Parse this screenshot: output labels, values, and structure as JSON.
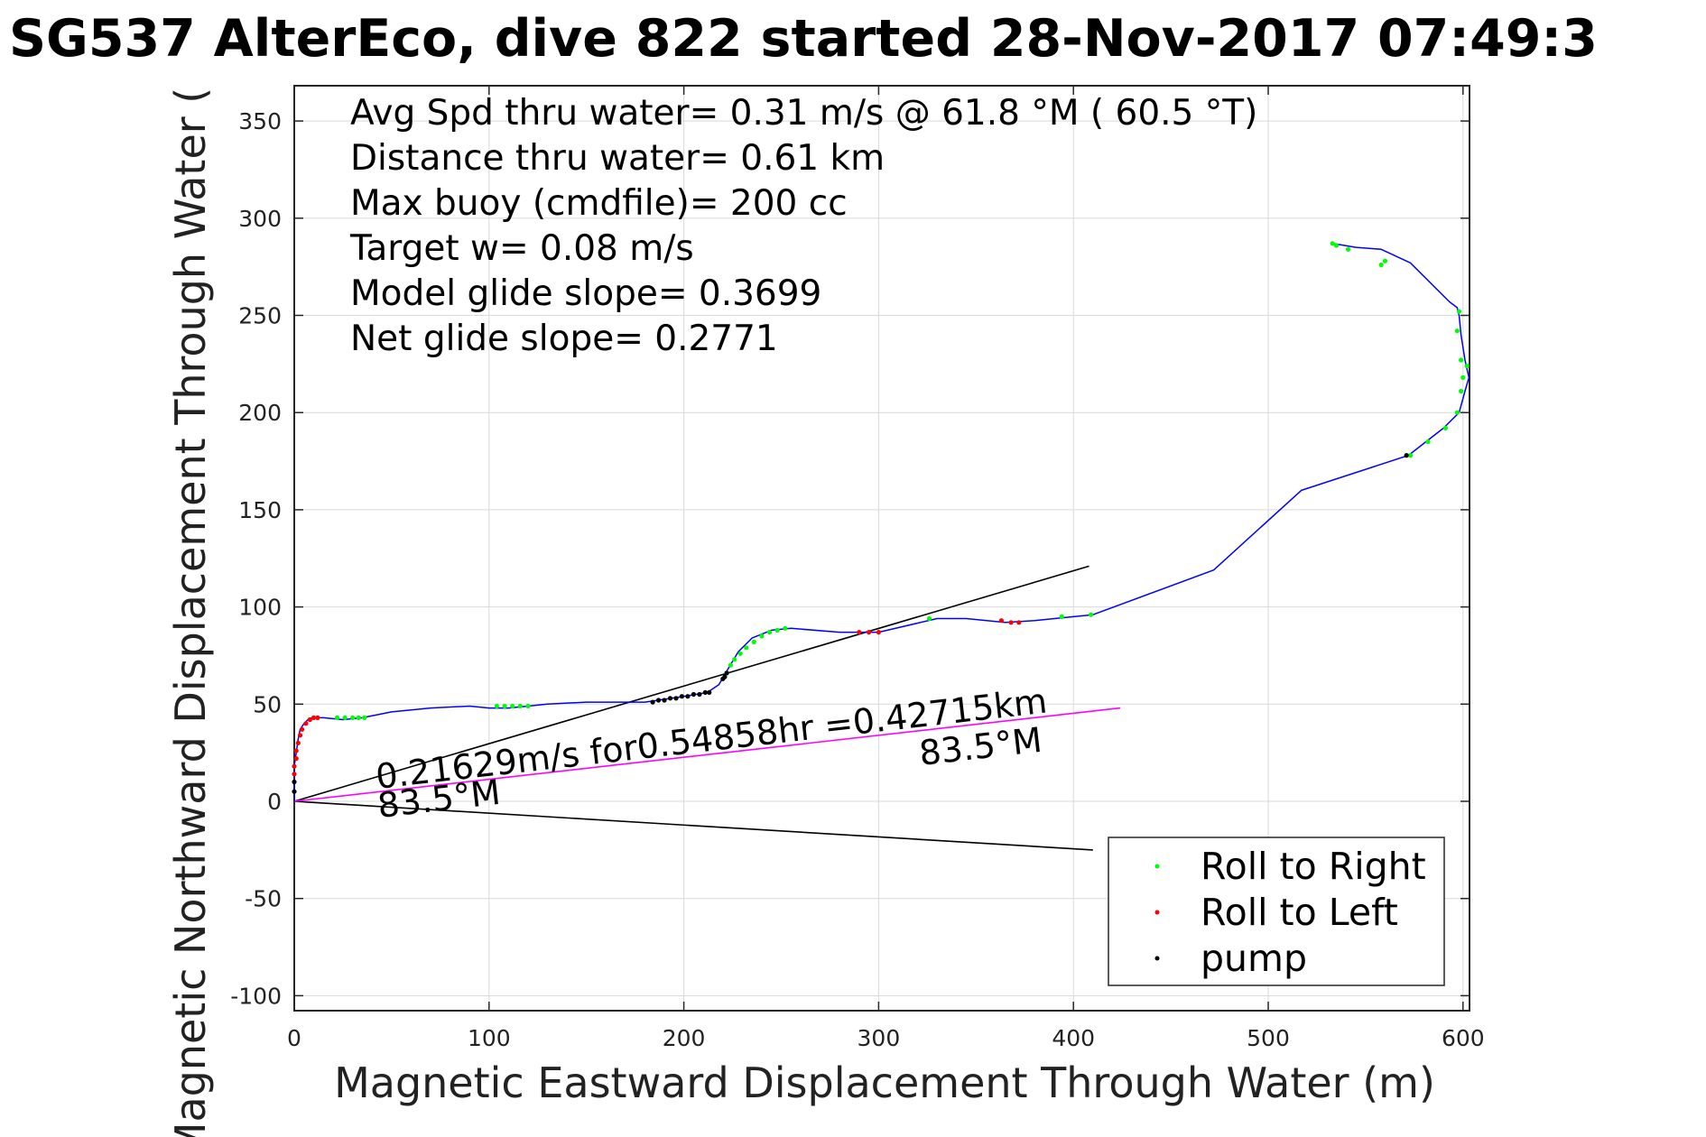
{
  "chart_data": {
    "type": "line",
    "title": "SG537 AlterEco, dive 822 started 28-Nov-2017 07:49:3",
    "xlabel": "Magnetic Eastward Displacement Through Water (m)",
    "ylabel": "Magnetic Northward Displacement Through Water (",
    "xlim": [
      0,
      600
    ],
    "ylim": [
      -100,
      365
    ],
    "xticks": [
      0,
      100,
      200,
      300,
      400,
      500,
      600
    ],
    "yticks": [
      -100,
      -50,
      0,
      50,
      100,
      150,
      200,
      250,
      300,
      350
    ],
    "grid": true,
    "legend_position": "bottom-right",
    "annotations": [
      "Avg Spd thru water=  0.31 m/s @  61.8 °M ( 60.5 °T)",
      "Distance thru water=  0.61 km",
      "Max buoy (cmdfile)= 200 cc",
      "Target w= 0.08 m/s",
      "Model glide slope= 0.3699",
      "Net glide slope= 0.2771"
    ],
    "current_label": "0.21629m/s for0.54858hr =0.42715km",
    "current_heading_label_1": "83.5°M",
    "current_heading_label_2": "83.5°M",
    "colors": {
      "track": "#0000ff",
      "roll_right": "#00ff00",
      "roll_left": "#ff0000",
      "pump": "#000000",
      "current_vector": "#ff00ff",
      "reference_lines": "#000000",
      "grid": "#d9d9d9",
      "axes": "#262626"
    },
    "series": [
      {
        "name": "track",
        "x": [
          0,
          0,
          0,
          1,
          2,
          3,
          5,
          7,
          9,
          10,
          12,
          15,
          25,
          35,
          50,
          70,
          90,
          100,
          110,
          120,
          130,
          150,
          180,
          200,
          212,
          218,
          222,
          228,
          235,
          245,
          255,
          280,
          300,
          330,
          345,
          365,
          380,
          400,
          410,
          472,
          517,
          572,
          590,
          598,
          601,
          603,
          601,
          599,
          598,
          597,
          593,
          573,
          558,
          545,
          533
        ],
        "y": [
          0,
          10,
          18,
          25,
          32,
          37,
          40,
          42,
          43,
          43,
          43,
          43,
          42,
          43,
          46,
          48,
          49,
          48,
          48,
          49,
          50,
          51,
          51,
          54,
          56,
          60,
          67,
          77,
          84,
          88,
          89,
          87,
          87,
          94,
          94,
          92,
          93,
          95,
          96,
          119,
          160,
          178,
          192,
          200,
          211,
          218,
          227,
          240,
          250,
          254,
          257,
          277,
          284,
          285,
          287
        ]
      },
      {
        "name": "Roll to Right",
        "x": [
          22,
          26,
          30,
          33,
          36,
          104,
          108,
          112,
          116,
          120,
          222,
          224,
          226,
          229,
          232,
          236,
          240,
          244,
          248,
          252,
          326,
          394,
          409,
          573,
          582,
          591,
          597,
          599,
          600,
          602,
          597,
          598,
          599,
          558,
          560,
          541,
          535,
          533
        ],
        "y": [
          43,
          43,
          43,
          43,
          43,
          49,
          49,
          49,
          49,
          49,
          66,
          70,
          73,
          76,
          79,
          82,
          85,
          87,
          88,
          89,
          94,
          95,
          96,
          178,
          185,
          192,
          200,
          211,
          218,
          224,
          242,
          252,
          227,
          276,
          278,
          284,
          286,
          287
        ]
      },
      {
        "name": "Roll to Left",
        "x": [
          0,
          0,
          1,
          1,
          2,
          3,
          4,
          6,
          8,
          10,
          12,
          290,
          295,
          300,
          363,
          368,
          372
        ],
        "y": [
          14,
          18,
          22,
          26,
          30,
          34,
          37,
          40,
          42,
          43,
          43,
          87,
          87,
          87,
          93,
          92,
          92
        ],
        "note_x_only": false
      },
      {
        "name": "pump",
        "x": [
          0,
          0,
          184,
          187,
          190,
          193,
          196,
          199,
          202,
          205,
          208,
          211,
          213,
          220,
          221,
          222,
          571
        ],
        "y": [
          5,
          10,
          51,
          52,
          52,
          53,
          53,
          54,
          54,
          55,
          55,
          56,
          56,
          63,
          64,
          66,
          178
        ]
      },
      {
        "name": "current vector",
        "x": [
          0,
          424
        ],
        "y": [
          0,
          48
        ]
      },
      {
        "name": "reference line upper",
        "x": [
          0,
          408
        ],
        "y": [
          0,
          121
        ]
      },
      {
        "name": "reference line lower",
        "x": [
          0,
          410
        ],
        "y": [
          0,
          -25
        ]
      }
    ],
    "legend": [
      "Roll to Right",
      "Roll to Left",
      "pump"
    ]
  }
}
